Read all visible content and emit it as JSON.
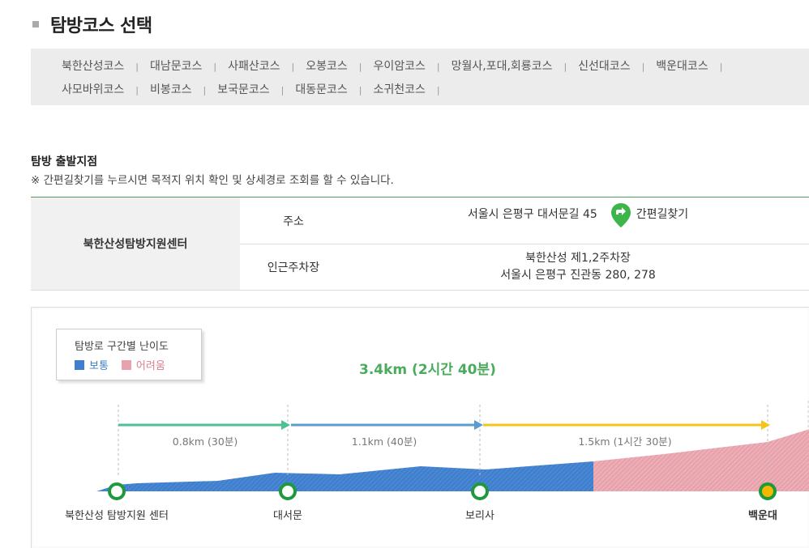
{
  "page": {
    "title": "탐방코스 선택"
  },
  "courses": [
    "북한산성코스",
    "대남문코스",
    "사패산코스",
    "오봉코스",
    "우이암코스",
    "망월사,포대,회룡코스",
    "신선대코스",
    "백운대코스",
    "사모바위코스",
    "비봉코스",
    "보국문코스",
    "대동문코스",
    "소귀천코스"
  ],
  "course_separator": "|",
  "start": {
    "heading": "탐방 출발지점",
    "note": "※ 간편길찾기를 누르시면 목적지 위치 확인 및 상세경로 조회를 할 수 있습니다.",
    "place_name": "북한산성탐방지원센터",
    "address_label": "주소",
    "address": "서울시 은평구 대서문길 45",
    "directions_label": "간편길찾기",
    "parking_label": "인근주차장",
    "parking_name": "북한산성 제1,2주차장",
    "parking_address": "서울시 은평구 진관동 280, 278"
  },
  "diagram": {
    "legend_title": "탐방로 구간별 난이도",
    "legend_easy": "보통",
    "legend_hard": "어려움",
    "total": "3.4km (2시간 40분)",
    "segments": [
      {
        "label": "0.8km (30분)",
        "color": "#4fbf95"
      },
      {
        "label": "1.1km (40분)",
        "color": "#5b9bd1"
      },
      {
        "label": "1.5km (1시간 30분)",
        "color": "#f5c518"
      }
    ],
    "waypoints": [
      "북한산성 탐방지원 센터",
      "대서문",
      "보리사",
      "백운대"
    ],
    "colors": {
      "easy": "#3f7fce",
      "hard": "#e8a2ac",
      "node_ring": "#1e9a3c",
      "destination": "#f5b800"
    }
  }
}
